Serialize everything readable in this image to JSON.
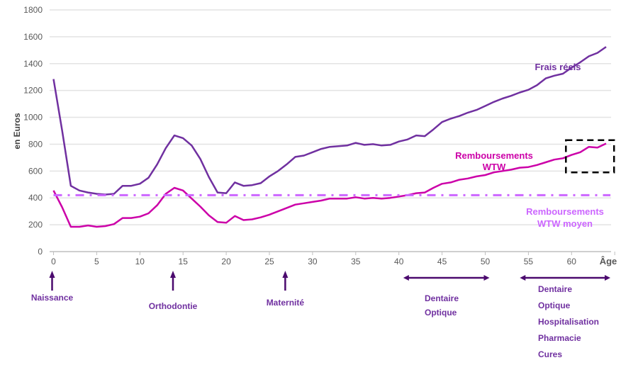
{
  "chart_data": {
    "type": "line",
    "title": "",
    "xlabel": "Âge",
    "ylabel": "en Euros",
    "xlim": [
      0,
      65
    ],
    "ylim": [
      0,
      1800
    ],
    "xticks": [
      0,
      5,
      10,
      15,
      20,
      25,
      30,
      35,
      40,
      45,
      50,
      55,
      60
    ],
    "yticks": [
      0,
      200,
      400,
      600,
      800,
      1000,
      1200,
      1400,
      1600,
      1800
    ],
    "grid": true,
    "x": [
      0,
      1,
      2,
      3,
      4,
      5,
      6,
      7,
      8,
      9,
      10,
      11,
      12,
      13,
      14,
      15,
      16,
      17,
      18,
      19,
      20,
      21,
      22,
      23,
      24,
      25,
      26,
      27,
      28,
      29,
      30,
      31,
      32,
      33,
      34,
      35,
      36,
      37,
      38,
      39,
      40,
      41,
      42,
      43,
      44,
      45,
      46,
      47,
      48,
      49,
      50,
      51,
      52,
      53,
      54,
      55,
      56,
      57,
      58,
      59,
      60,
      61,
      62,
      63,
      64
    ],
    "series": [
      {
        "name": "Frais réels",
        "color": "#7030A0",
        "style": "solid",
        "values": [
          1285,
          900,
          490,
          455,
          440,
          430,
          425,
          430,
          490,
          490,
          505,
          550,
          650,
          770,
          865,
          845,
          790,
          690,
          555,
          440,
          435,
          515,
          490,
          495,
          510,
          560,
          600,
          650,
          705,
          715,
          740,
          765,
          780,
          785,
          790,
          810,
          795,
          800,
          790,
          795,
          820,
          835,
          865,
          860,
          910,
          965,
          990,
          1010,
          1035,
          1055,
          1085,
          1115,
          1140,
          1160,
          1185,
          1205,
          1240,
          1290,
          1310,
          1325,
          1370,
          1410,
          1455,
          1480,
          1525
        ]
      },
      {
        "name": "Remboursements WTW",
        "color": "#CC00A8",
        "style": "solid",
        "values": [
          455,
          330,
          185,
          185,
          195,
          185,
          190,
          205,
          250,
          250,
          260,
          285,
          345,
          430,
          475,
          455,
          395,
          335,
          270,
          220,
          215,
          265,
          235,
          240,
          255,
          275,
          300,
          325,
          350,
          360,
          370,
          380,
          395,
          395,
          395,
          405,
          395,
          400,
          395,
          400,
          410,
          420,
          435,
          440,
          475,
          505,
          515,
          535,
          545,
          560,
          570,
          590,
          600,
          610,
          625,
          630,
          645,
          665,
          685,
          695,
          720,
          740,
          780,
          775,
          805
        ]
      },
      {
        "name": "Remboursements WTW moyen",
        "color": "#CC66FF",
        "style": "dash-dot",
        "values": [
          420,
          420,
          420,
          420,
          420,
          420,
          420,
          420,
          420,
          420,
          420,
          420,
          420,
          420,
          420,
          420,
          420,
          420,
          420,
          420,
          420,
          420,
          420,
          420,
          420,
          420,
          420,
          420,
          420,
          420,
          420,
          420,
          420,
          420,
          420,
          420,
          420,
          420,
          420,
          420,
          420,
          420,
          420,
          420,
          420,
          420,
          420,
          420,
          420,
          420,
          420,
          420,
          420,
          420,
          420,
          420,
          420,
          420,
          420,
          420,
          420,
          420,
          420,
          420,
          420
        ]
      }
    ],
    "series_labels": {
      "frais": "Frais réels",
      "remb_line1": "Remboursements",
      "remb_line2": "WTW",
      "moyen_line1": "Remboursements",
      "moyen_line2": "WTW moyen"
    },
    "highlight_box": {
      "x_range": [
        60,
        65
      ],
      "y_range": [
        590,
        830
      ],
      "color": "#000000",
      "style": "dashed"
    },
    "annotations": [
      {
        "type": "arrow-up",
        "age": 0,
        "labels": [
          "Naissance"
        ]
      },
      {
        "type": "arrow-up",
        "age": 14,
        "labels": [
          "Orthodontie"
        ]
      },
      {
        "type": "arrow-up",
        "age": 27,
        "labels": [
          "Maternité"
        ]
      },
      {
        "type": "range",
        "from": 41,
        "to": 50,
        "labels": [
          "Dentaire",
          "Optique"
        ]
      },
      {
        "type": "range",
        "from": 54.5,
        "to": 64,
        "labels": [
          "Dentaire",
          "Optique",
          "Hospitalisation",
          "Pharmacie",
          "Cures"
        ]
      }
    ],
    "annotation_color": "#7030A0",
    "arrow_color": "#4B0A6E"
  }
}
